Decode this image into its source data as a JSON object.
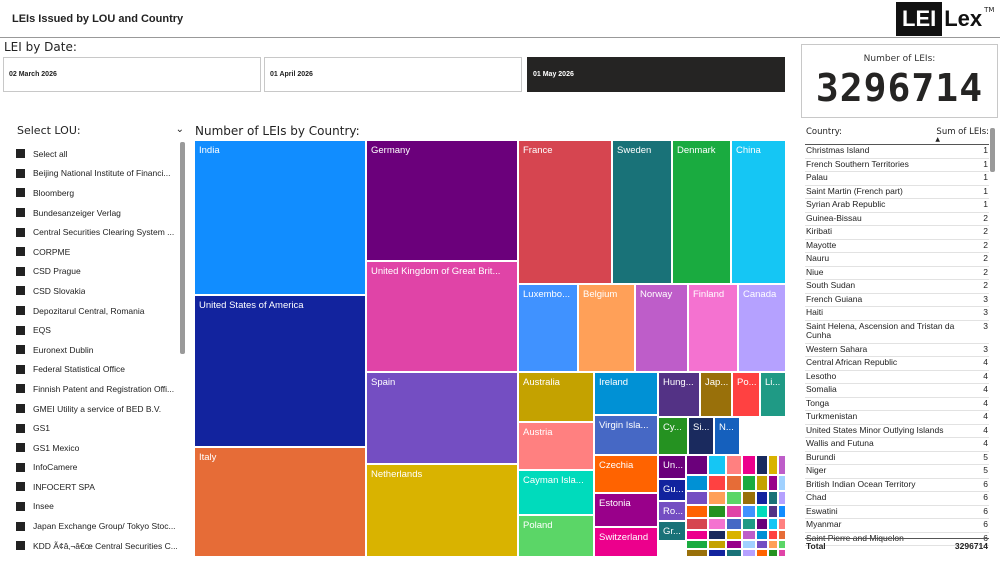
{
  "header": {
    "title": "LEIs Issued by LOU and Country",
    "logo_lei": "LEI",
    "logo_lex": "Lex",
    "logo_tm": "TM"
  },
  "date_slicer": {
    "label": "LEI by Date:",
    "options": [
      "02 March 2026",
      "01 April 2026",
      "01 May 2026"
    ],
    "selected": "01 May 2026"
  },
  "kpi": {
    "label": "Number of LEIs:",
    "value": "3296714"
  },
  "lou_slicer": {
    "label": "Select LOU:",
    "items": [
      "Select all",
      "Beijing National Institute of Financi...",
      "Bloomberg",
      "Bundesanzeiger Verlag",
      "Central Securities Clearing System ...",
      "CORPME",
      "CSD Prague",
      "CSD Slovakia",
      "Depozitarul Central, Romania",
      "EQS",
      "Euronext Dublin",
      "Federal Statistical Office",
      "Finnish Patent and Registration Offi...",
      "GMEI Utility a service of BED B.V.",
      "GS1",
      "GS1 Mexico",
      "InfoCamere",
      "INFOCERT SPA",
      "Insee",
      "Japan Exchange Group/ Tokyo Stoc...",
      "KDD Ã¢â‚¬â€œ Central Securities C..."
    ]
  },
  "treemap": {
    "title": "Number of LEIs by Country:",
    "tiles": [
      {
        "label": "India",
        "color": "#118DFF"
      },
      {
        "label": "United States of America",
        "color": "#12239E"
      },
      {
        "label": "Italy",
        "color": "#E66C37"
      },
      {
        "label": "Germany",
        "color": "#6B007B"
      },
      {
        "label": "United Kingdom of Great Brit...",
        "color": "#E044A7"
      },
      {
        "label": "Spain",
        "color": "#744EC2"
      },
      {
        "label": "Netherlands",
        "color": "#D9B300"
      },
      {
        "label": "France",
        "color": "#D64550"
      },
      {
        "label": "Sweden",
        "color": "#197278"
      },
      {
        "label": "Denmark",
        "color": "#1AAB40"
      },
      {
        "label": "China",
        "color": "#15C6F4"
      },
      {
        "label": "Luxembo...",
        "color": "#4092FF"
      },
      {
        "label": "Belgium",
        "color": "#FFA058"
      },
      {
        "label": "Norway",
        "color": "#BE5DC9"
      },
      {
        "label": "Finland",
        "color": "#F472D0"
      },
      {
        "label": "Canada",
        "color": "#B5A1FF"
      },
      {
        "label": "Australia",
        "color": "#C4A200"
      },
      {
        "label": "Austria",
        "color": "#FF8080"
      },
      {
        "label": "Cayman Isla...",
        "color": "#00DBBC"
      },
      {
        "label": "Poland",
        "color": "#5BD667"
      },
      {
        "label": "Ireland",
        "color": "#0091D5"
      },
      {
        "label": "Virgin Isla...",
        "color": "#4668C5"
      },
      {
        "label": "Czechia",
        "color": "#FF6300"
      },
      {
        "label": "Estonia",
        "color": "#99008A"
      },
      {
        "label": "Switzerland",
        "color": "#EC008C"
      },
      {
        "label": "Hung...",
        "color": "#533285"
      },
      {
        "label": "Jap...",
        "color": "#99700A"
      },
      {
        "label": "Po...",
        "color": "#FF4141"
      },
      {
        "label": "Li...",
        "color": "#1F9A85"
      },
      {
        "label": "Cy...",
        "color": "#259221"
      },
      {
        "label": "Si...",
        "color": "#1A2A5E"
      },
      {
        "label": "N...",
        "color": "#1560BD"
      },
      {
        "label": "Un...",
        "color": "#6B007B"
      },
      {
        "label": "Gu...",
        "color": "#12239E"
      },
      {
        "label": "Ro...",
        "color": "#744EC2"
      },
      {
        "label": "Gr...",
        "color": "#197278"
      }
    ]
  },
  "country_table": {
    "col_country": "Country:",
    "col_sum": "Sum of LEIs:",
    "sort_arrow": "▲",
    "rows": [
      [
        "Christmas Island",
        "1"
      ],
      [
        "French Southern Territories",
        "1"
      ],
      [
        "Palau",
        "1"
      ],
      [
        "Saint Martin (French part)",
        "1"
      ],
      [
        "Syrian Arab Republic",
        "1"
      ],
      [
        "Guinea-Bissau",
        "2"
      ],
      [
        "Kiribati",
        "2"
      ],
      [
        "Mayotte",
        "2"
      ],
      [
        "Nauru",
        "2"
      ],
      [
        "Niue",
        "2"
      ],
      [
        "South Sudan",
        "2"
      ],
      [
        "French Guiana",
        "3"
      ],
      [
        "Haiti",
        "3"
      ],
      [
        "Saint Helena, Ascension and Tristan da Cunha",
        "3"
      ],
      [
        "Western Sahara",
        "3"
      ],
      [
        "Central African Republic",
        "4"
      ],
      [
        "Lesotho",
        "4"
      ],
      [
        "Somalia",
        "4"
      ],
      [
        "Tonga",
        "4"
      ],
      [
        "Turkmenistan",
        "4"
      ],
      [
        "United States Minor Outlying Islands",
        "4"
      ],
      [
        "Wallis and Futuna",
        "4"
      ],
      [
        "Burundi",
        "5"
      ],
      [
        "Niger",
        "5"
      ],
      [
        "British Indian Ocean Territory",
        "6"
      ],
      [
        "Chad",
        "6"
      ],
      [
        "Eswatini",
        "6"
      ],
      [
        "Myanmar",
        "6"
      ],
      [
        "Saint Pierre and Miquelon",
        "6"
      ]
    ],
    "total_label": "Total",
    "total_value": "3296714"
  }
}
